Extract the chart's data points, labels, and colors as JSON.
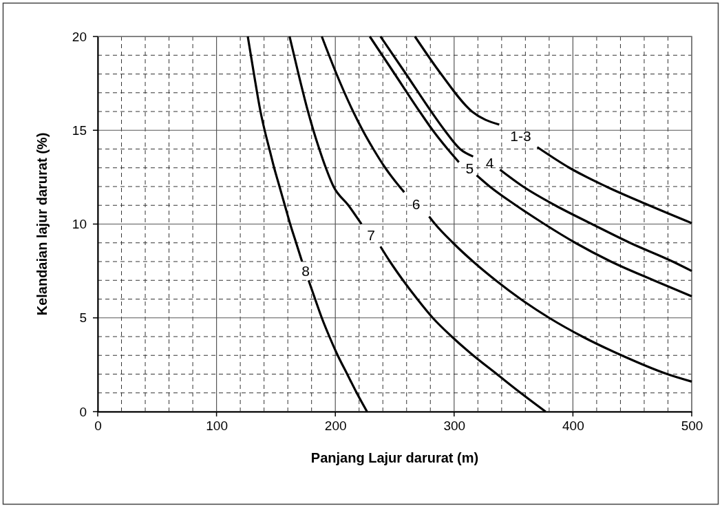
{
  "chart_data": {
    "type": "line",
    "xlabel": "Panjang Lajur darurat (m)",
    "ylabel": "Kelandaian lajur darurat (%)",
    "xlim": [
      0,
      500
    ],
    "ylim": [
      0,
      20
    ],
    "xticks": [
      0,
      {
        "value": 20,
        "label": null
      },
      {
        "value": 40,
        "label": null
      },
      {
        "value": 60,
        "label": null
      },
      {
        "value": 80,
        "label": null
      },
      100,
      {
        "value": 120,
        "label": null
      },
      {
        "value": 140,
        "label": null
      },
      {
        "value": 160,
        "label": null
      },
      {
        "value": 180,
        "label": null
      },
      200,
      {
        "value": 220,
        "label": null
      },
      {
        "value": 240,
        "label": null
      },
      {
        "value": 260,
        "label": null
      },
      {
        "value": 280,
        "label": null
      },
      300,
      {
        "value": 320,
        "label": null
      },
      {
        "value": 340,
        "label": null
      },
      {
        "value": 360,
        "label": null
      },
      {
        "value": 380,
        "label": null
      },
      400,
      {
        "value": 420,
        "label": null
      },
      {
        "value": 440,
        "label": null
      },
      {
        "value": 460,
        "label": null
      },
      {
        "value": 480,
        "label": null
      },
      500
    ],
    "yticks": [
      0,
      {
        "value": 1,
        "label": null
      },
      {
        "value": 2,
        "label": null
      },
      {
        "value": 3,
        "label": null
      },
      {
        "value": 4,
        "label": null
      },
      5,
      {
        "value": 6,
        "label": null
      },
      {
        "value": 7,
        "label": null
      },
      {
        "value": 8,
        "label": null
      },
      {
        "value": 9,
        "label": null
      },
      10,
      {
        "value": 11,
        "label": null
      },
      {
        "value": 12,
        "label": null
      },
      {
        "value": 13,
        "label": null
      },
      {
        "value": 14,
        "label": null
      },
      15,
      {
        "value": 16,
        "label": null
      },
      {
        "value": 17,
        "label": null
      },
      {
        "value": 18,
        "label": null
      },
      {
        "value": 19,
        "label": null
      },
      20
    ],
    "grid": true,
    "legend": false,
    "marker": "none",
    "line_style": "solid",
    "series": [
      {
        "name": "1-3",
        "color": "#000000",
        "x": [
          267,
          289,
          315,
          338,
          356,
          370,
          397,
          428,
          464,
          500
        ],
        "values": [
          20,
          18,
          16,
          15.3,
          null,
          14.1,
          13,
          12,
          11,
          10.05
        ]
      },
      {
        "name": "4",
        "color": "#000000",
        "x": [
          238,
          259.5,
          280.7,
          292,
          305,
          316,
          330,
          338.6,
          358,
          385,
          416,
          448,
          484,
          500
        ],
        "values": [
          20,
          18,
          16,
          15,
          14,
          13.6,
          null,
          12.9,
          12,
          11,
          10,
          9,
          8,
          7.5
        ]
      },
      {
        "name": "5",
        "color": "#000000",
        "x": [
          229,
          250,
          271,
          282,
          294.5,
          304,
          313,
          319,
          330,
          352,
          376,
          402,
          432,
          468,
          500
        ],
        "values": [
          20,
          18,
          16,
          15,
          14,
          13.3,
          null,
          12.6,
          12,
          11,
          10,
          9,
          8,
          7,
          6.15
        ]
      },
      {
        "name": "6",
        "color": "#000000",
        "x": [
          188.6,
          201,
          215,
          223,
          232,
          242,
          254,
          258,
          268,
          279,
          284,
          299,
          316,
          335,
          356,
          380,
          408,
          441,
          479.5,
          500
        ],
        "values": [
          20,
          18,
          16,
          15,
          14,
          13,
          12,
          11.7,
          null,
          10.4,
          10,
          9,
          8,
          7,
          6,
          5,
          4,
          3,
          2,
          1.6
        ]
      },
      {
        "name": "7",
        "color": "#000000",
        "x": [
          161.5,
          169,
          177,
          181.5,
          186.5,
          192,
          198.5,
          211,
          222,
          230,
          238,
          246,
          257,
          269,
          282,
          298,
          316,
          336,
          356,
          377
        ],
        "values": [
          20,
          18,
          16,
          15,
          14,
          13,
          12,
          11,
          10,
          null,
          8.8,
          8,
          7,
          6,
          5,
          4,
          3,
          2,
          1,
          0
        ]
      },
      {
        "name": "8",
        "color": "#000000",
        "x": [
          126.3,
          131.5,
          137,
          140.5,
          144.5,
          148.5,
          153,
          157.5,
          162,
          167,
          172,
          175,
          177.5,
          183,
          188.6,
          195,
          202,
          210,
          218,
          226.7
        ],
        "values": [
          20,
          18,
          16,
          15,
          14,
          13,
          12,
          11,
          10,
          9,
          8,
          null,
          7,
          6,
          5,
          4,
          3,
          2,
          1,
          0
        ]
      }
    ]
  }
}
